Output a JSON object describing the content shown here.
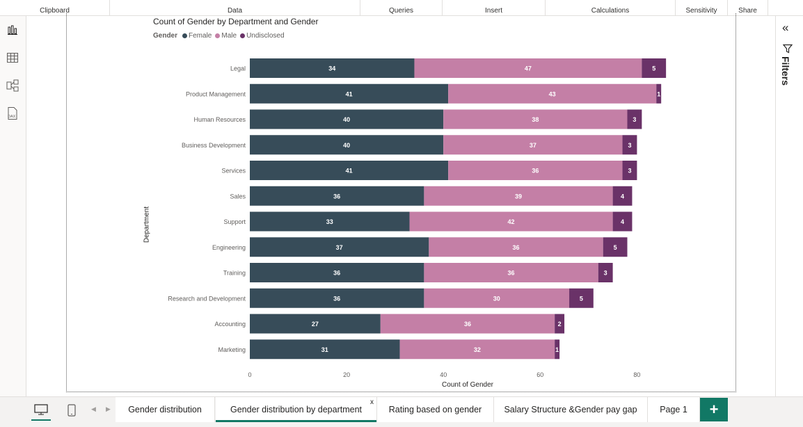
{
  "ribbon": {
    "groups": [
      {
        "label": "Clipboard"
      },
      {
        "label": "Data"
      },
      {
        "label": "Queries"
      },
      {
        "label": "Insert"
      },
      {
        "label": "Calculations"
      },
      {
        "label": "Sensitivity"
      },
      {
        "label": "Share"
      }
    ]
  },
  "chart": {
    "title": "Count of Gender by Department and Gender",
    "legend_title": "Gender",
    "xlabel": "Count of Gender",
    "ylabel": "Department"
  },
  "filters": {
    "label": "Filters"
  },
  "tabs": [
    {
      "label": "Gender distribution",
      "active": false
    },
    {
      "label": "Gender distribution by department",
      "active": true
    },
    {
      "label": "Rating based on gender",
      "active": false
    },
    {
      "label": "Salary Structure &Gender pay gap",
      "active": false
    },
    {
      "label": "Page 1",
      "active": false
    }
  ],
  "active_tab_close": "x",
  "add_page": "+",
  "colors": {
    "female": "#374c59",
    "male": "#c47fa6",
    "undisclosed": "#6a3268",
    "accent": "#117865"
  },
  "chart_data": {
    "type": "bar",
    "orientation": "horizontal",
    "stacked": true,
    "title": "Count of Gender by Department and Gender",
    "xlabel": "Count of Gender",
    "ylabel": "Department",
    "legend_title": "Gender",
    "legend_position": "top-left",
    "categories": [
      "Legal",
      "Product Management",
      "Human Resources",
      "Business Development",
      "Services",
      "Sales",
      "Support",
      "Engineering",
      "Training",
      "Research and Development",
      "Accounting",
      "Marketing"
    ],
    "series": [
      {
        "name": "Female",
        "color": "#374c59",
        "values": [
          34,
          41,
          40,
          40,
          41,
          36,
          33,
          37,
          36,
          36,
          27,
          31
        ]
      },
      {
        "name": "Male",
        "color": "#c47fa6",
        "values": [
          47,
          43,
          38,
          37,
          36,
          39,
          42,
          36,
          36,
          30,
          36,
          32
        ]
      },
      {
        "name": "Undisclosed",
        "color": "#6a3268",
        "values": [
          5,
          1,
          3,
          3,
          3,
          4,
          4,
          5,
          3,
          5,
          2,
          1
        ]
      }
    ],
    "xlim": [
      0,
      86
    ],
    "xticks": [
      0,
      20,
      40,
      60,
      80
    ],
    "grid": false
  }
}
